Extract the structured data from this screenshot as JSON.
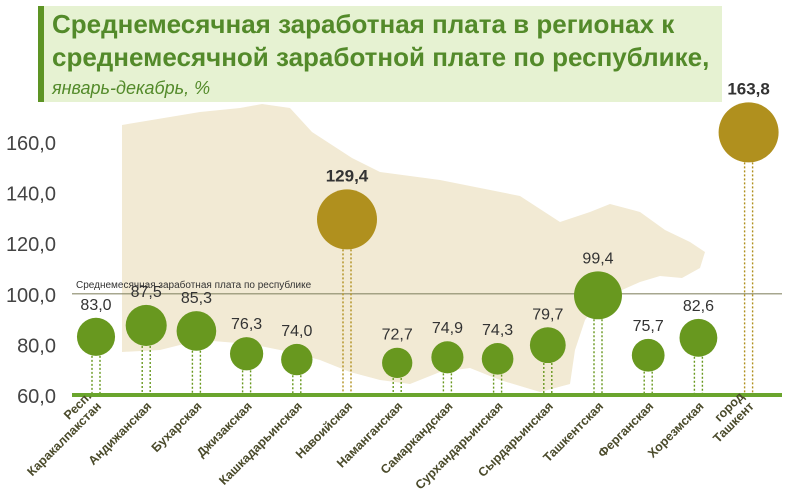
{
  "chart_data": {
    "type": "bubble",
    "title": "Среднемесячная заработная плата в регионах к среднемесячной заработной плате по республике,",
    "subtitle": "январь-декабрь,  %",
    "ylim": [
      60,
      170
    ],
    "yticks": [
      "60,0",
      "80,0",
      "100,0",
      "120,0",
      "140,0",
      "160,0"
    ],
    "ytick_values": [
      60,
      80,
      100,
      120,
      140,
      160
    ],
    "reference": {
      "value": 100,
      "label": "Среднемесячная заработная плата по республике"
    },
    "categories": [
      [
        "Респ.",
        "Каракалпакстан"
      ],
      [
        "Андижанская"
      ],
      [
        "Бухарская"
      ],
      [
        "Джизакская"
      ],
      [
        "Кашкадарьинская"
      ],
      [
        "Навоийская"
      ],
      [
        "Наманганская"
      ],
      [
        "Самаркандская"
      ],
      [
        "Сурхандарьинская"
      ],
      [
        "Сырдарьинская"
      ],
      [
        "Ташкентская"
      ],
      [
        "Ферганская"
      ],
      [
        "Хорезмская"
      ],
      [
        "город",
        "Ташкент"
      ]
    ],
    "values": [
      83.0,
      87.5,
      85.3,
      76.3,
      74.0,
      129.4,
      72.7,
      74.9,
      74.3,
      79.7,
      99.4,
      75.7,
      82.6,
      163.8
    ],
    "labels": [
      "83,0",
      "87,5",
      "85,3",
      "76,3",
      "74,0",
      "129,4",
      "72,7",
      "74,9",
      "74,3",
      "79,7",
      "99,4",
      "75,7",
      "82,6",
      "163,8"
    ],
    "highlight": [
      5,
      13
    ],
    "colors": {
      "bubble": "#68981f",
      "highlight": "#b0901e",
      "axis": "#6aa52d",
      "reference": "#8a8a6a",
      "map": "#f2ead4",
      "title": "#538a2a"
    }
  }
}
